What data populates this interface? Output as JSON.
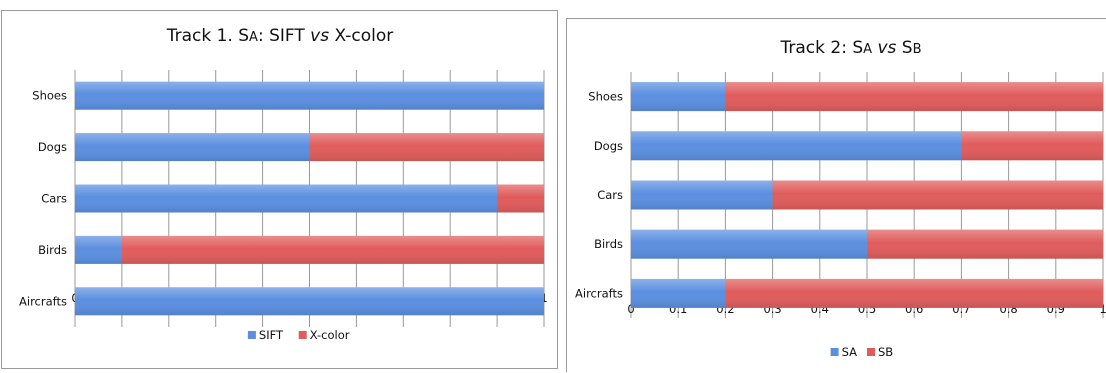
{
  "colors": {
    "series_1": "#5b8fe0",
    "series_2": "#e05c5c",
    "grid": "#999999"
  },
  "chart_data": [
    {
      "type": "bar",
      "orientation": "horizontal",
      "stacked": true,
      "title": {
        "prefix": "Track 1. S",
        "sc": "A",
        "mid": ": SIFT ",
        "italic": "vs",
        "suffix": " X-color"
      },
      "categories": [
        "Shoes",
        "Dogs",
        "Cars",
        "Birds",
        "Aircrafts"
      ],
      "series": [
        {
          "name": "SIFT",
          "values": [
            1.0,
            0.5,
            0.9,
            0.1,
            1.0
          ]
        },
        {
          "name": "X-color",
          "values": [
            0.0,
            0.5,
            0.1,
            0.9,
            0.0
          ]
        }
      ],
      "xlim": [
        0,
        1
      ],
      "xticks": [
        "0",
        "0.1",
        "0.2",
        "0.3",
        "0.4",
        "0.5",
        "0.6",
        "0.7",
        "0.8",
        "0.9",
        "1"
      ],
      "grid": true,
      "legend": "bottom"
    },
    {
      "type": "bar",
      "orientation": "horizontal",
      "stacked": true,
      "title": {
        "prefix": "Track 2: S",
        "sc": "A",
        "mid": " ",
        "italic": "vs",
        "suffix": " S",
        "sc2": "B"
      },
      "categories": [
        "Shoes",
        "Dogs",
        "Cars",
        "Birds",
        "Aircrafts"
      ],
      "series": [
        {
          "name": "SA",
          "values": [
            0.2,
            0.7,
            0.3,
            0.5,
            0.2
          ]
        },
        {
          "name": "SB",
          "values": [
            0.8,
            0.3,
            0.7,
            0.5,
            0.8
          ]
        }
      ],
      "xlim": [
        0,
        1
      ],
      "xticks": [
        "0",
        "0.1",
        "0.2",
        "0.3",
        "0.4",
        "0.5",
        "0.6",
        "0.7",
        "0.8",
        "0.9",
        "1"
      ],
      "grid": true,
      "legend": "bottom"
    }
  ]
}
